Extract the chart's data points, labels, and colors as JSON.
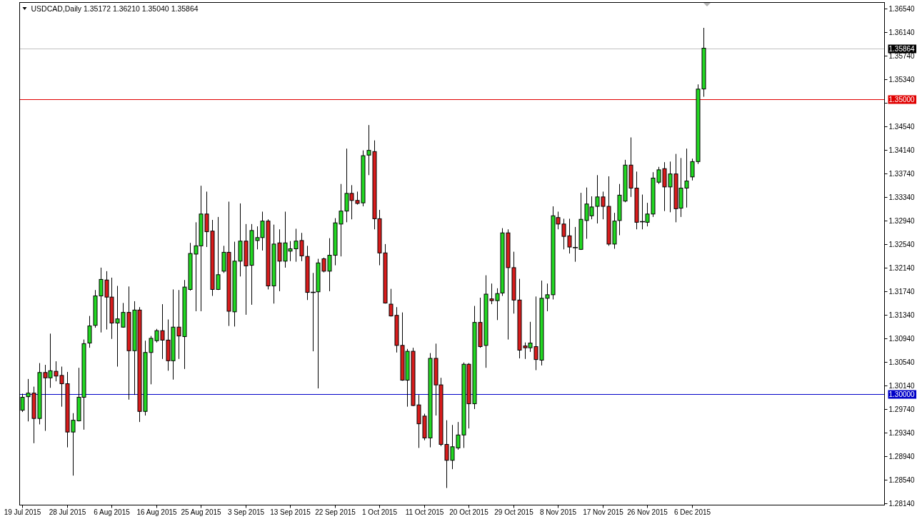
{
  "chart_data": {
    "type": "candlestick",
    "title": "USDCAD,Daily 1.35172 1.36210 1.35040 1.35864",
    "categories": [
      "19 Jul 2015",
      null,
      null,
      null,
      null,
      null,
      null,
      null,
      "28 Jul 2015",
      null,
      null,
      null,
      null,
      null,
      null,
      null,
      "6 Aug 2015",
      null,
      null,
      null,
      null,
      null,
      null,
      null,
      "16 Aug 2015",
      null,
      null,
      null,
      null,
      null,
      null,
      null,
      "25 Aug 2015",
      null,
      null,
      null,
      null,
      null,
      null,
      null,
      "3 Sep 2015",
      null,
      null,
      null,
      null,
      null,
      null,
      null,
      "13 Sep 2015",
      null,
      null,
      null,
      null,
      null,
      null,
      null,
      "22 Sep 2015",
      null,
      null,
      null,
      null,
      null,
      null,
      null,
      "1 Oct 2015",
      null,
      null,
      null,
      null,
      null,
      null,
      null,
      "11 Oct 2015",
      null,
      null,
      null,
      null,
      null,
      null,
      null,
      "20 Oct 2015",
      null,
      null,
      null,
      null,
      null,
      null,
      null,
      "29 Oct 2015",
      null,
      null,
      null,
      null,
      null,
      null,
      null,
      "8 Nov 2015",
      null,
      null,
      null,
      null,
      null,
      null,
      null,
      "17 Nov 2015",
      null,
      null,
      null,
      null,
      null,
      null,
      null,
      "26 Nov 2015",
      null,
      null,
      null,
      null,
      null,
      null,
      null,
      "6 Dec 2015",
      null,
      null,
      null,
      null,
      null,
      null,
      null,
      null,
      null,
      null,
      null,
      null,
      null,
      null,
      null,
      null,
      null,
      null,
      null,
      null,
      null,
      null,
      null,
      null,
      null,
      null,
      null,
      null,
      null,
      null,
      null,
      null,
      null,
      null
    ],
    "ohlc": [
      [
        1.2972,
        1.3,
        1.2969,
        1.2994
      ],
      [
        1.2995,
        1.3025,
        1.2953,
        1.3001
      ],
      [
        1.3001,
        1.3012,
        1.2916,
        1.2958
      ],
      [
        1.2958,
        1.3052,
        1.2948,
        1.3036
      ],
      [
        1.3036,
        1.3049,
        1.2937,
        1.3027
      ],
      [
        1.3027,
        1.3102,
        1.301,
        1.3039
      ],
      [
        1.3038,
        1.3055,
        1.3021,
        1.303
      ],
      [
        1.3031,
        1.3046,
        1.2978,
        1.3017
      ],
      [
        1.3017,
        1.3037,
        1.2909,
        1.2935
      ],
      [
        1.2935,
        1.2967,
        1.2861,
        1.2955
      ],
      [
        1.2954,
        1.3044,
        1.2953,
        1.2994
      ],
      [
        1.2994,
        1.3092,
        1.2939,
        1.3085
      ],
      [
        1.3086,
        1.3132,
        1.3078,
        1.3115
      ],
      [
        1.3116,
        1.3176,
        1.3112,
        1.3166
      ],
      [
        1.3166,
        1.3214,
        1.3104,
        1.3194
      ],
      [
        1.3193,
        1.3208,
        1.3109,
        1.3164
      ],
      [
        1.3164,
        1.3197,
        1.3093,
        1.312
      ],
      [
        1.312,
        1.3183,
        1.3046,
        1.3127
      ],
      [
        1.3113,
        1.3154,
        1.3112,
        1.3138
      ],
      [
        1.3138,
        1.3182,
        1.299,
        1.3073
      ],
      [
        1.3073,
        1.3157,
        1.2998,
        1.3142
      ],
      [
        1.3142,
        1.3147,
        1.2952,
        1.297
      ],
      [
        1.297,
        1.309,
        1.2963,
        1.307
      ],
      [
        1.307,
        1.3098,
        1.3016,
        1.3094
      ],
      [
        1.309,
        1.311,
        1.3087,
        1.3107
      ],
      [
        1.3107,
        1.3152,
        1.3059,
        1.3091
      ],
      [
        1.3091,
        1.3126,
        1.3039,
        1.3056
      ],
      [
        1.3056,
        1.3177,
        1.3024,
        1.3113
      ],
      [
        1.3113,
        1.3176,
        1.3059,
        1.3098
      ],
      [
        1.3097,
        1.3193,
        1.3042,
        1.3181
      ],
      [
        1.3177,
        1.3256,
        1.3175,
        1.3238
      ],
      [
        1.3237,
        1.3291,
        1.314,
        1.3251
      ],
      [
        1.3251,
        1.3353,
        1.314,
        1.3305
      ],
      [
        1.3305,
        1.3343,
        1.3249,
        1.3275
      ],
      [
        1.3276,
        1.3295,
        1.3166,
        1.3177
      ],
      [
        1.3177,
        1.33,
        1.3176,
        1.3202
      ],
      [
        1.3208,
        1.3251,
        1.3205,
        1.324
      ],
      [
        1.324,
        1.3326,
        1.3115,
        1.314
      ],
      [
        1.3139,
        1.3258,
        1.3114,
        1.3225
      ],
      [
        1.3225,
        1.3323,
        1.3199,
        1.3259
      ],
      [
        1.3259,
        1.3288,
        1.3134,
        1.3217
      ],
      [
        1.3218,
        1.3288,
        1.3151,
        1.3277
      ],
      [
        1.326,
        1.3284,
        1.3245,
        1.3265
      ],
      [
        1.3265,
        1.3309,
        1.3243,
        1.3293
      ],
      [
        1.3293,
        1.3296,
        1.3177,
        1.3183
      ],
      [
        1.3183,
        1.3287,
        1.3153,
        1.3254
      ],
      [
        1.3256,
        1.3279,
        1.3174,
        1.3225
      ],
      [
        1.3225,
        1.3309,
        1.3214,
        1.3256
      ],
      [
        1.3242,
        1.3259,
        1.3225,
        1.3246
      ],
      [
        1.3246,
        1.328,
        1.3224,
        1.3259
      ],
      [
        1.326,
        1.3273,
        1.3225,
        1.3234
      ],
      [
        1.3233,
        1.3251,
        1.3159,
        1.3172
      ],
      [
        1.3172,
        1.3205,
        1.3072,
        1.3172
      ],
      [
        1.3173,
        1.3229,
        1.3009,
        1.3222
      ],
      [
        1.3229,
        1.3231,
        1.3206,
        1.3208
      ],
      [
        1.3208,
        1.3264,
        1.3174,
        1.3235
      ],
      [
        1.3235,
        1.3298,
        1.3218,
        1.329
      ],
      [
        1.3288,
        1.3356,
        1.3233,
        1.331
      ],
      [
        1.331,
        1.3416,
        1.3291,
        1.334
      ],
      [
        1.334,
        1.3354,
        1.3296,
        1.3328
      ],
      [
        1.3328,
        1.3343,
        1.3321,
        1.3323
      ],
      [
        1.3324,
        1.3413,
        1.3318,
        1.3404
      ],
      [
        1.3405,
        1.3456,
        1.3371,
        1.3413
      ],
      [
        1.3411,
        1.343,
        1.3279,
        1.3297
      ],
      [
        1.3297,
        1.3312,
        1.3218,
        1.3239
      ],
      [
        1.3239,
        1.3254,
        1.3153,
        1.3154
      ],
      [
        1.3152,
        1.3178,
        1.3131,
        1.3132
      ],
      [
        1.3133,
        1.3147,
        1.307,
        1.3082
      ],
      [
        1.3082,
        1.3138,
        1.3022,
        1.3023
      ],
      [
        1.3023,
        1.3076,
        1.2978,
        1.3072
      ],
      [
        1.3072,
        1.3078,
        1.2979,
        1.298
      ],
      [
        1.2981,
        1.2998,
        1.2908,
        1.2949
      ],
      [
        1.2962,
        1.2966,
        1.2921,
        1.2925
      ],
      [
        1.2925,
        1.3069,
        1.2909,
        1.306
      ],
      [
        1.306,
        1.3085,
        1.2963,
        1.3015
      ],
      [
        1.3015,
        1.3027,
        1.2911,
        1.2914
      ],
      [
        1.2914,
        1.2955,
        1.284,
        1.2887
      ],
      [
        1.2887,
        1.2947,
        1.2872,
        1.291
      ],
      [
        1.2908,
        1.2952,
        1.2905,
        1.293
      ],
      [
        1.293,
        1.3053,
        1.2908,
        1.305
      ],
      [
        1.305,
        1.3052,
        1.2941,
        1.2983
      ],
      [
        1.2983,
        1.3149,
        1.2974,
        1.3121
      ],
      [
        1.3121,
        1.3163,
        1.3078,
        1.308
      ],
      [
        1.3082,
        1.3201,
        1.3044,
        1.3169
      ],
      [
        1.3161,
        1.3187,
        1.3152,
        1.3158
      ],
      [
        1.3158,
        1.3179,
        1.3125,
        1.317
      ],
      [
        1.3171,
        1.3281,
        1.3166,
        1.3273
      ],
      [
        1.3273,
        1.3279,
        1.3092,
        1.3214
      ],
      [
        1.3214,
        1.3241,
        1.3136,
        1.3159
      ],
      [
        1.3159,
        1.3195,
        1.306,
        1.3074
      ],
      [
        1.3081,
        1.3087,
        1.3059,
        1.3078
      ],
      [
        1.3078,
        1.3122,
        1.3071,
        1.3086
      ],
      [
        1.308,
        1.3165,
        1.304,
        1.3058
      ],
      [
        1.3057,
        1.3192,
        1.3048,
        1.3162
      ],
      [
        1.3162,
        1.3187,
        1.314,
        1.3168
      ],
      [
        1.3168,
        1.3318,
        1.316,
        1.3302
      ],
      [
        1.3299,
        1.3309,
        1.3279,
        1.3288
      ],
      [
        1.3288,
        1.3297,
        1.3245,
        1.3267
      ],
      [
        1.3268,
        1.3297,
        1.3238,
        1.3249
      ],
      [
        1.3248,
        1.3283,
        1.3224,
        1.3248
      ],
      [
        1.3245,
        1.3341,
        1.3244,
        1.3296
      ],
      [
        1.3294,
        1.335,
        1.3263,
        1.3322
      ],
      [
        1.3302,
        1.3335,
        1.3296,
        1.3317
      ],
      [
        1.3318,
        1.3371,
        1.3289,
        1.3334
      ],
      [
        1.3334,
        1.3343,
        1.3296,
        1.3318
      ],
      [
        1.3318,
        1.3369,
        1.3251,
        1.3254
      ],
      [
        1.3254,
        1.3307,
        1.3246,
        1.3293
      ],
      [
        1.3294,
        1.3356,
        1.3269,
        1.3337
      ],
      [
        1.3327,
        1.3397,
        1.3325,
        1.3388
      ],
      [
        1.3388,
        1.3435,
        1.3334,
        1.3349
      ],
      [
        1.3349,
        1.3377,
        1.3279,
        1.3291
      ],
      [
        1.3292,
        1.3338,
        1.3279,
        1.3292
      ],
      [
        1.3291,
        1.3324,
        1.3284,
        1.3305
      ],
      [
        1.3305,
        1.3376,
        1.33,
        1.3366
      ],
      [
        1.3359,
        1.3385,
        1.3356,
        1.338
      ],
      [
        1.3382,
        1.3393,
        1.331,
        1.3351
      ],
      [
        1.3351,
        1.3394,
        1.3308,
        1.3373
      ],
      [
        1.3373,
        1.3407,
        1.3291,
        1.3314
      ],
      [
        1.3315,
        1.34,
        1.33,
        1.3349
      ],
      [
        1.3349,
        1.3416,
        1.3316,
        1.3361
      ],
      [
        1.3368,
        1.3399,
        1.3362,
        1.3394
      ],
      [
        1.3394,
        1.3525,
        1.339,
        1.3517
      ],
      [
        1.35172,
        1.3621,
        1.3504,
        1.35864
      ],
      null,
      null,
      null,
      null,
      null,
      null,
      null,
      null,
      null,
      null,
      null,
      null,
      null,
      null,
      null,
      null,
      null,
      null,
      null,
      null,
      null,
      null,
      null,
      null,
      null,
      null,
      null,
      null,
      null,
      null,
      null,
      null
    ],
    "colors": [
      "#22d822",
      "#22d822",
      "#d81c1c",
      "#22d822",
      "#d81c1c",
      "#22d822",
      "#d81c1c",
      "#d81c1c",
      "#d81c1c",
      "#22d822",
      "#22d822",
      "#22d822",
      "#22d822",
      "#22d822",
      "#22d822",
      "#d81c1c",
      "#d81c1c",
      "#22d822",
      "#22d822",
      "#d81c1c",
      "#22d822",
      "#d81c1c",
      "#22d822",
      "#22d822",
      "#22d822",
      "#d81c1c",
      "#d81c1c",
      "#22d822",
      "#d81c1c",
      "#22d822",
      "#22d822",
      "#22d822",
      "#22d822",
      "#d81c1c",
      "#d81c1c",
      "#22d822",
      "#22d822",
      "#d81c1c",
      "#22d822",
      "#22d822",
      "#d81c1c",
      "#22d822",
      "#22d822",
      "#22d822",
      "#d81c1c",
      "#22d822",
      "#d81c1c",
      "#22d822",
      "#22d822",
      "#22d822",
      "#d81c1c",
      "#d81c1c",
      "#000000",
      "#22d822",
      "#d81c1c",
      "#22d822",
      "#22d822",
      "#22d822",
      "#22d822",
      "#d81c1c",
      "#d81c1c",
      "#22d822",
      "#22d822",
      "#d81c1c",
      "#d81c1c",
      "#d81c1c",
      "#d81c1c",
      "#d81c1c",
      "#d81c1c",
      "#22d822",
      "#d81c1c",
      "#d81c1c",
      "#d81c1c",
      "#22d822",
      "#d81c1c",
      "#d81c1c",
      "#d81c1c",
      "#22d822",
      "#22d822",
      "#22d822",
      "#d81c1c",
      "#22d822",
      "#d81c1c",
      "#22d822",
      "#d81c1c",
      "#22d822",
      "#22d822",
      "#d81c1c",
      "#d81c1c",
      "#d81c1c",
      "#d81c1c",
      "#22d822",
      "#d81c1c",
      "#22d822",
      "#22d822",
      "#22d822",
      "#d81c1c",
      "#d81c1c",
      "#d81c1c",
      "#000000",
      "#22d822",
      "#22d822",
      "#22d822",
      "#22d822",
      "#d81c1c",
      "#d81c1c",
      "#22d822",
      "#22d822",
      "#22d822",
      "#d81c1c",
      "#d81c1c",
      "#000000",
      "#22d822",
      "#22d822",
      "#22d822",
      "#d81c1c",
      "#22d822",
      "#d81c1c",
      "#22d822",
      "#22d822",
      "#22d822",
      "#22d822",
      "#22d822",
      null,
      null,
      null,
      null,
      null,
      null,
      null,
      null,
      null,
      null,
      null,
      null,
      null,
      null,
      null,
      null,
      null,
      null,
      null,
      null,
      null,
      null,
      null,
      null,
      null,
      null,
      null,
      null,
      null,
      null,
      null,
      null
    ],
    "ylim": [
      1.2811,
      1.3664
    ],
    "yticks": [
      {
        "value": 1.2814,
        "label": "1.28140"
      },
      {
        "value": 1.2854,
        "label": "1.28540"
      },
      {
        "value": 1.2894,
        "label": "1.28940"
      },
      {
        "value": 1.2934,
        "label": "1.29340"
      },
      {
        "value": 1.2974,
        "label": "1.29740"
      },
      {
        "value": 1.3014,
        "label": "1.30140"
      },
      {
        "value": 1.3054,
        "label": "1.30540"
      },
      {
        "value": 1.3094,
        "label": "1.30940"
      },
      {
        "value": 1.3134,
        "label": "1.31340"
      },
      {
        "value": 1.3174,
        "label": "1.31740"
      },
      {
        "value": 1.3214,
        "label": "1.32140"
      },
      {
        "value": 1.3254,
        "label": "1.32540"
      },
      {
        "value": 1.3294,
        "label": "1.32940"
      },
      {
        "value": 1.3334,
        "label": "1.33340"
      },
      {
        "value": 1.3374,
        "label": "1.33740"
      },
      {
        "value": 1.3414,
        "label": "1.34140"
      },
      {
        "value": 1.3454,
        "label": "1.34540"
      },
      {
        "value": 1.3494,
        "label": null
      },
      {
        "value": 1.3534,
        "label": "1.35340"
      },
      {
        "value": 1.3574,
        "label": "1.35740"
      },
      {
        "value": 1.3614,
        "label": "1.36140"
      },
      {
        "value": 1.3654,
        "label": "1.36540"
      }
    ],
    "ref_lines": [
      {
        "axis": "y",
        "value": 1.35864,
        "label": "1.35864",
        "color": "#c0c0c0"
      },
      {
        "axis": "y",
        "value": 1.35,
        "label": "1.35000",
        "color": "#e00000"
      },
      {
        "axis": "y",
        "value": 1.3,
        "label": "1.30000",
        "color": "#0000c8"
      }
    ]
  }
}
